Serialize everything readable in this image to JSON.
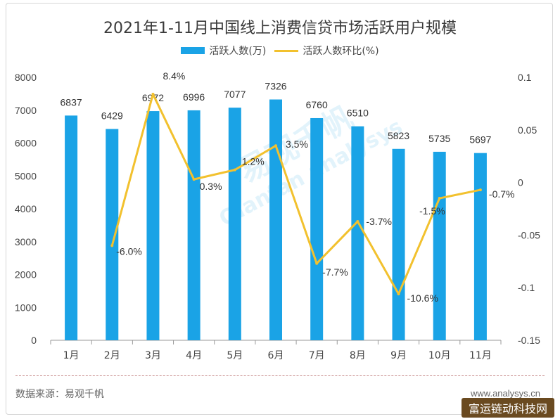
{
  "chart_data": {
    "type": "bar",
    "title": "2021年1-11月中国线上消费信贷市场活跃用户规模",
    "categories": [
      "1月",
      "2月",
      "3月",
      "4月",
      "5月",
      "6月",
      "7月",
      "8月",
      "9月",
      "10月",
      "11月"
    ],
    "series": [
      {
        "name": "活跃人数(万)",
        "type": "bar",
        "axis": "left",
        "color": "#1aa3e6",
        "values": [
          6837,
          6429,
          6972,
          6996,
          7077,
          7326,
          6760,
          6510,
          5823,
          5735,
          5697
        ],
        "labels": [
          "6837",
          "6429",
          "6972",
          "6996",
          "7077",
          "7326",
          "6760",
          "6510",
          "5823",
          "5735",
          "5697"
        ]
      },
      {
        "name": "活跃人数环比(%)",
        "type": "line",
        "axis": "right",
        "color": "#f2c12e",
        "values": [
          null,
          -0.06,
          0.084,
          0.003,
          0.012,
          0.035,
          -0.077,
          -0.037,
          -0.106,
          -0.015,
          -0.007
        ],
        "labels": [
          "",
          "-6.0%",
          "8.4%",
          "0.3%",
          "1.2%",
          "3.5%",
          "-7.7%",
          "-3.7%",
          "-10.6%",
          "-1.5%",
          "-0.7%"
        ]
      }
    ],
    "y_left": {
      "min": 0,
      "max": 8000,
      "ticks": [
        "0",
        "1000",
        "2000",
        "3000",
        "4000",
        "5000",
        "6000",
        "7000",
        "8000"
      ]
    },
    "y_right": {
      "min": -0.15,
      "max": 0.1,
      "ticks": [
        "0.1",
        "0.05",
        "0",
        "-0.05",
        "-0.1",
        "-0.15"
      ],
      "tick_values": [
        0.1,
        0.05,
        0,
        -0.05,
        -0.1,
        -0.15
      ]
    },
    "legend_position": "top-center",
    "grid": false
  },
  "watermark": {
    "logo_text": "易观千帆",
    "text": "Qianfan analysys"
  },
  "footer": {
    "source": "数据来源：易观千帆",
    "site": "www.analysys.cn"
  },
  "badge": {
    "text": "富运链动科技网"
  },
  "colors": {
    "bar": "#1aa3e6",
    "line": "#f2c12e",
    "axis": "#9a9a9a"
  }
}
